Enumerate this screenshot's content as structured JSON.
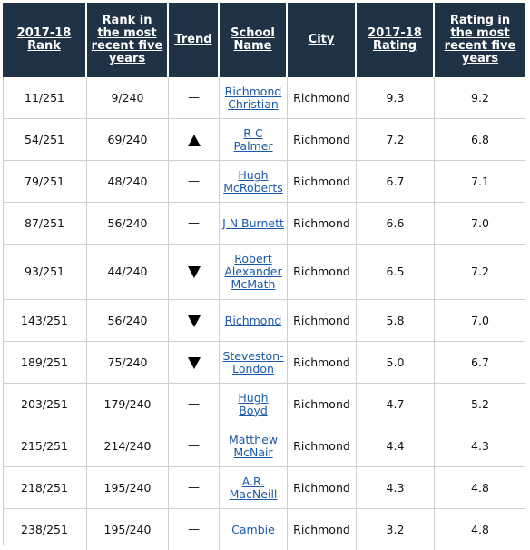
{
  "headers": {
    "rank": "2017-18 Rank",
    "rank5": "Rank in the most recent five years",
    "trend": "Trend",
    "school": "School Name",
    "city": "City",
    "rating": "2017-18 Rating",
    "rating5": "Rating in the most recent five years"
  },
  "rows": [
    {
      "rank": "11/251",
      "rank5": "9/240",
      "trend": "flat",
      "trend_symbol": "—",
      "school": "Richmond Christian",
      "city": "Richmond",
      "rating": "9.3",
      "rating5": "9.2"
    },
    {
      "rank": "54/251",
      "rank5": "69/240",
      "trend": "up",
      "trend_symbol": "",
      "school": "R C Palmer",
      "city": "Richmond",
      "rating": "7.2",
      "rating5": "6.8"
    },
    {
      "rank": "79/251",
      "rank5": "48/240",
      "trend": "flat",
      "trend_symbol": "—",
      "school": "Hugh McRoberts",
      "city": "Richmond",
      "rating": "6.7",
      "rating5": "7.1"
    },
    {
      "rank": "87/251",
      "rank5": "56/240",
      "trend": "flat",
      "trend_symbol": "—",
      "school": "J N Burnett",
      "city": "Richmond",
      "rating": "6.6",
      "rating5": "7.0"
    },
    {
      "rank": "93/251",
      "rank5": "44/240",
      "trend": "down",
      "trend_symbol": "",
      "school": "Robert Alexander McMath",
      "city": "Richmond",
      "rating": "6.5",
      "rating5": "7.2"
    },
    {
      "rank": "143/251",
      "rank5": "56/240",
      "trend": "down",
      "trend_symbol": "",
      "school": "Richmond",
      "city": "Richmond",
      "rating": "5.8",
      "rating5": "7.0"
    },
    {
      "rank": "189/251",
      "rank5": "75/240",
      "trend": "down",
      "trend_symbol": "",
      "school": "Steveston-London",
      "city": "Richmond",
      "rating": "5.0",
      "rating5": "6.7"
    },
    {
      "rank": "203/251",
      "rank5": "179/240",
      "trend": "flat",
      "trend_symbol": "—",
      "school": "Hugh Boyd",
      "city": "Richmond",
      "rating": "4.7",
      "rating5": "5.2"
    },
    {
      "rank": "215/251",
      "rank5": "214/240",
      "trend": "flat",
      "trend_symbol": "—",
      "school": "Matthew McNair",
      "city": "Richmond",
      "rating": "4.4",
      "rating5": "4.3"
    },
    {
      "rank": "218/251",
      "rank5": "195/240",
      "trend": "flat",
      "trend_symbol": "—",
      "school": "A.R. MacNeill",
      "city": "Richmond",
      "rating": "4.3",
      "rating5": "4.8"
    },
    {
      "rank": "238/251",
      "rank5": "195/240",
      "trend": "flat",
      "trend_symbol": "—",
      "school": "Cambie",
      "city": "Richmond",
      "rating": "3.2",
      "rating5": "4.8"
    }
  ]
}
